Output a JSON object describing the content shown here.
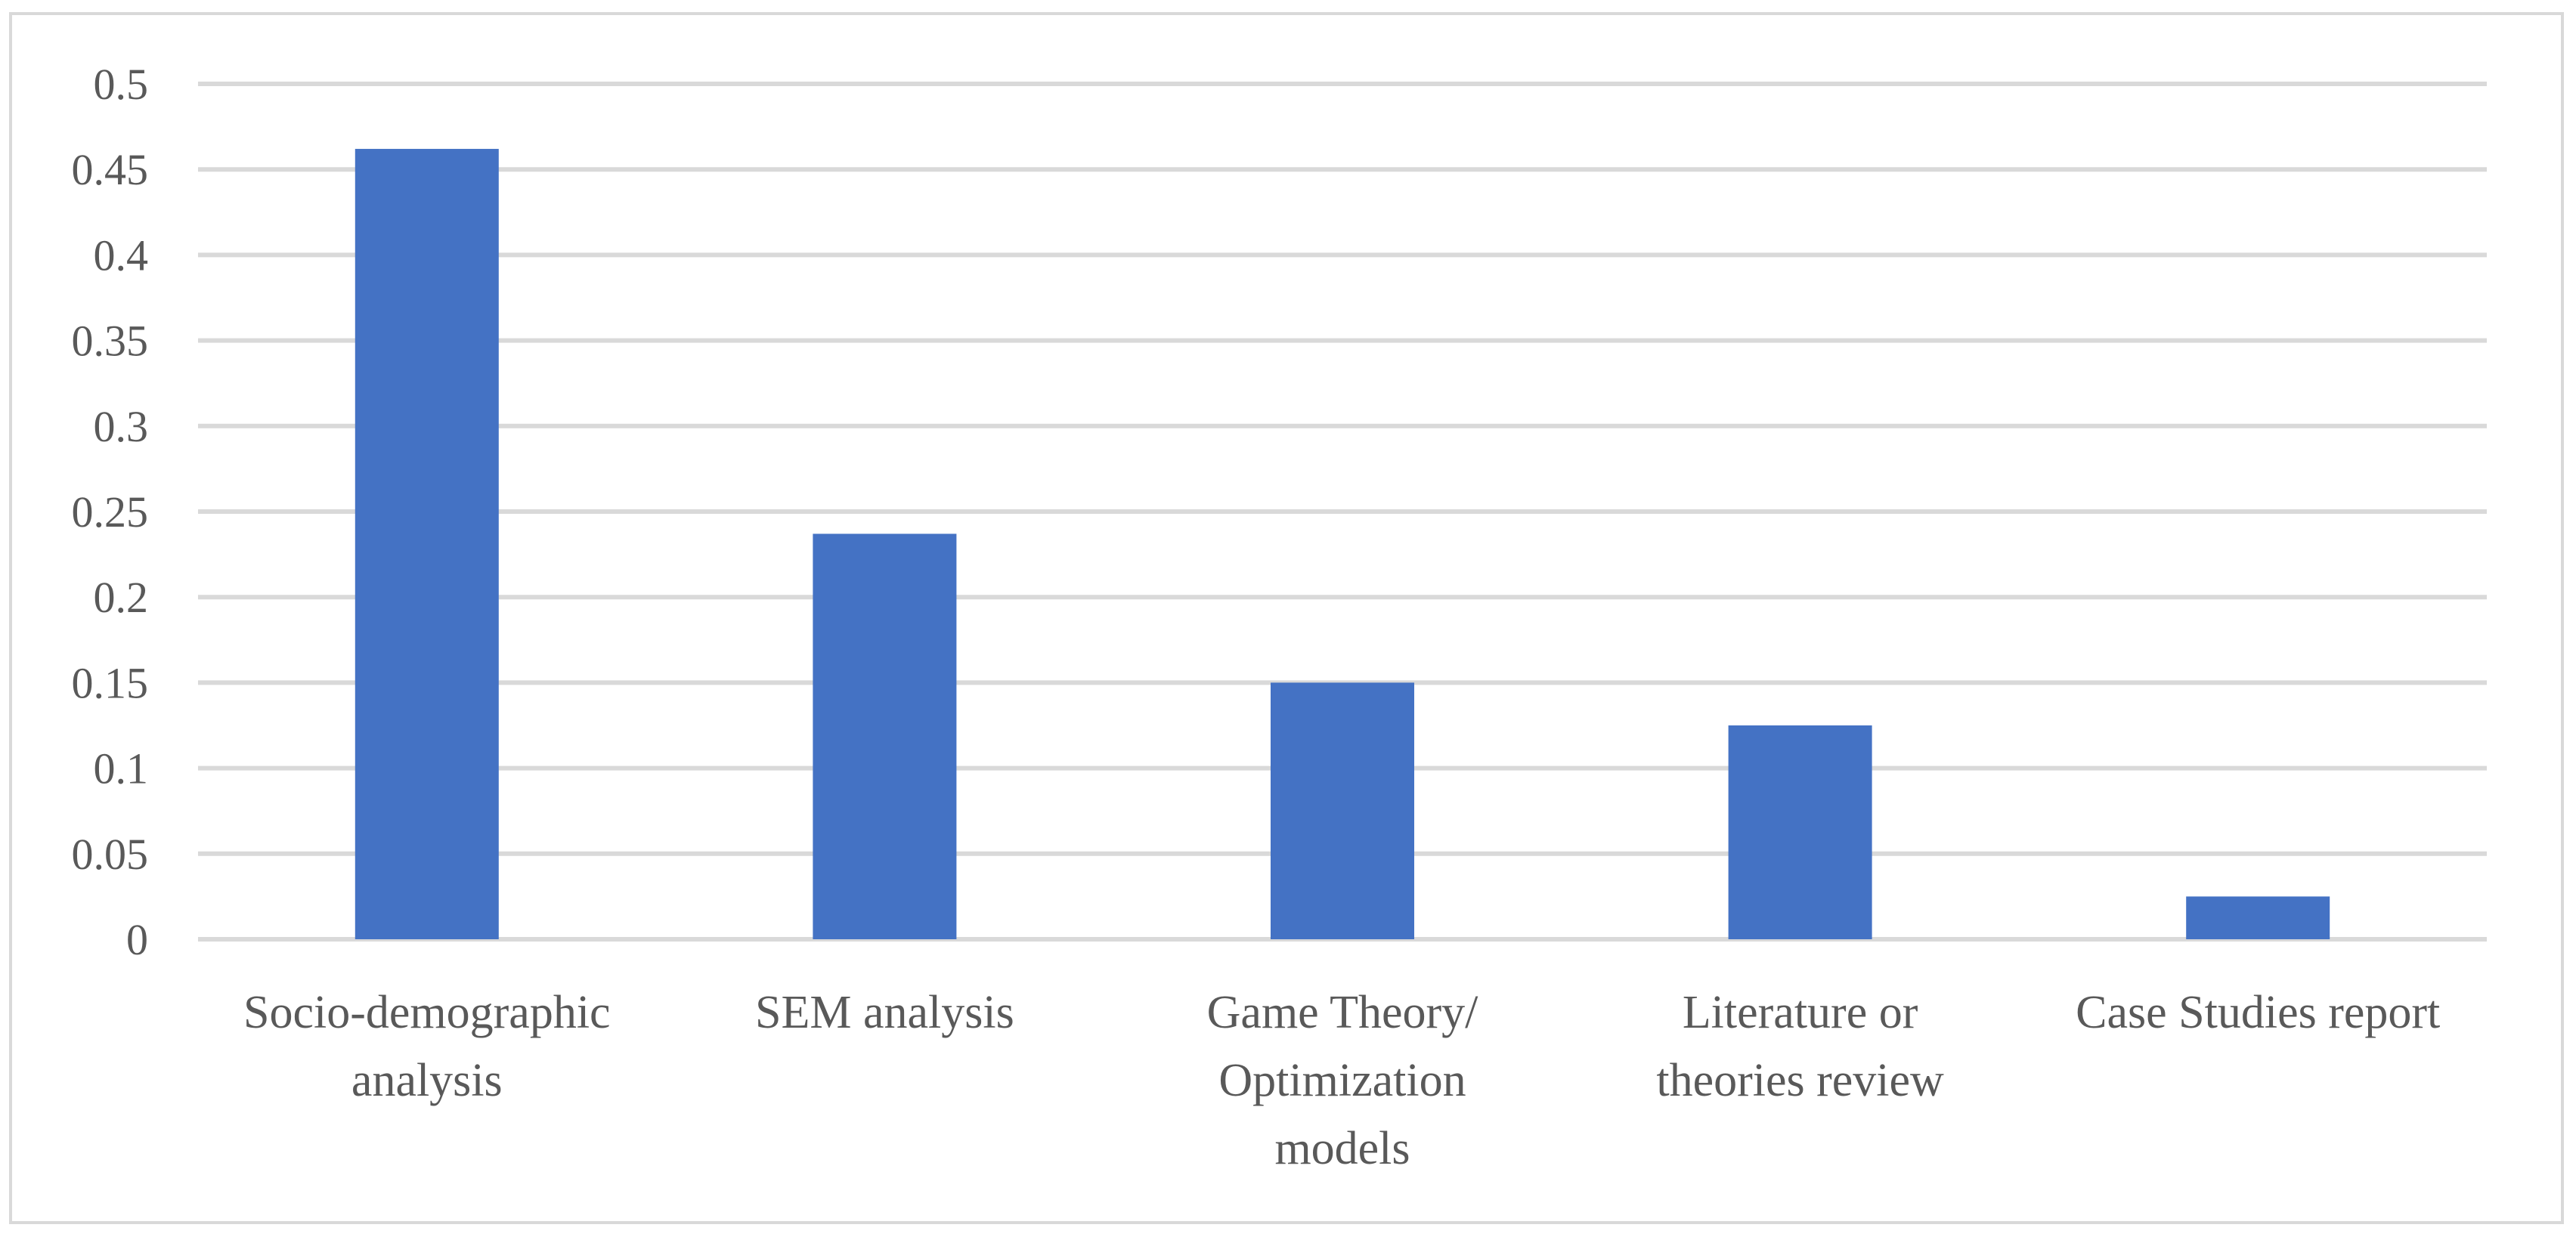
{
  "chart_data": {
    "type": "bar",
    "title": "",
    "xlabel": "",
    "ylabel": "",
    "categories": [
      [
        "Socio-demographic",
        "analysis"
      ],
      [
        "SEM analysis"
      ],
      [
        "Game Theory/",
        "Optimization",
        "models"
      ],
      [
        "Literature or",
        "theories review"
      ],
      [
        "Case Studies report"
      ]
    ],
    "values": [
      0.462,
      0.237,
      0.15,
      0.125,
      0.025
    ],
    "ylim": [
      0,
      0.5
    ],
    "yticks": [
      "0",
      "0.05",
      "0.1",
      "0.15",
      "0.2",
      "0.25",
      "0.3",
      "0.35",
      "0.4",
      "0.45",
      "0.5"
    ],
    "grid": true,
    "legend": "none",
    "colors": {
      "bar": "#4472C4",
      "grid": "#d9d9d9",
      "text": "#595959"
    }
  }
}
